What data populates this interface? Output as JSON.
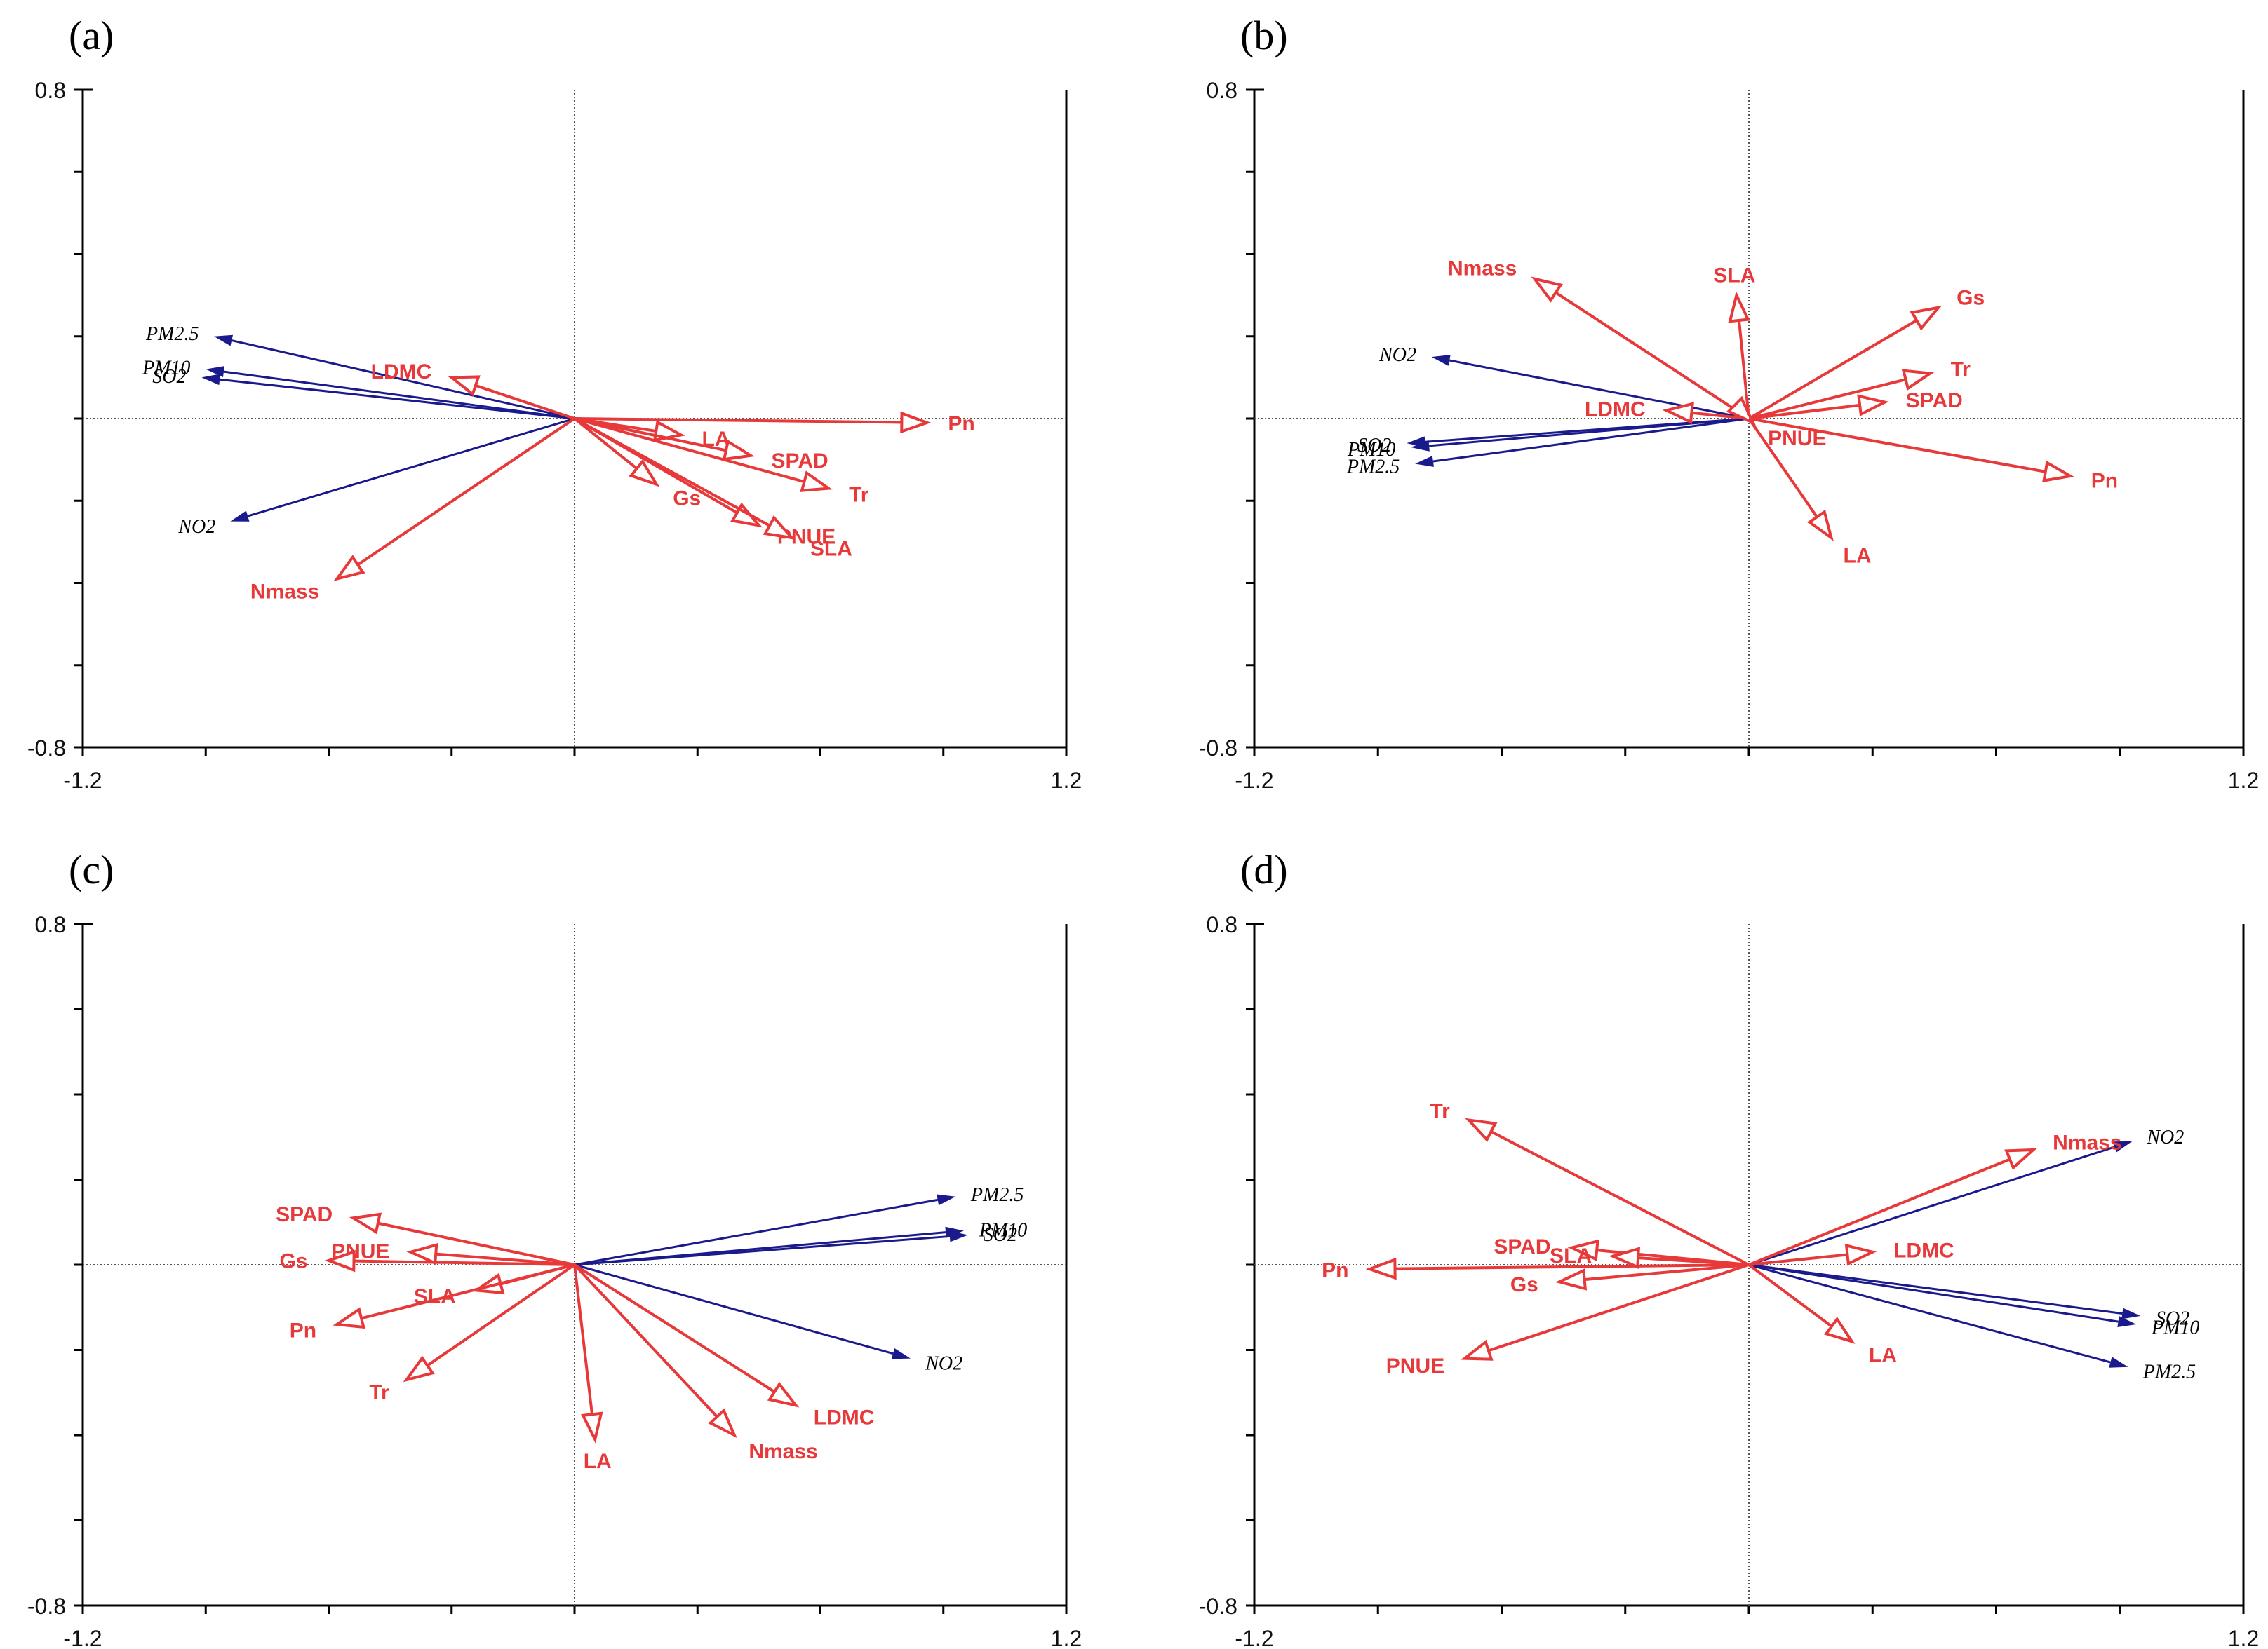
{
  "figure": {
    "panel_labels": [
      "(a)",
      "(b)",
      "(c)",
      "(d)"
    ]
  },
  "colors": {
    "trait_arrow": "#e8393a",
    "env_arrow": "#1a1a8c",
    "axis": "#000000",
    "crosshair": "#555555"
  },
  "chart_data": [
    {
      "type": "biplot",
      "panel": "(a)",
      "xlim": [
        -1.2,
        1.2
      ],
      "ylim": [
        -0.8,
        0.8
      ],
      "x_tick_labels": [
        "-1.2",
        "1.2"
      ],
      "y_tick_labels": [
        "0.8",
        "-0.8"
      ],
      "environmental_vectors": [
        {
          "name": "PM2.5",
          "x": -0.88,
          "y": 0.2
        },
        {
          "name": "PM10",
          "x": -0.9,
          "y": 0.12
        },
        {
          "name": "SO2",
          "x": -0.91,
          "y": 0.1
        },
        {
          "name": "NO2",
          "x": -0.84,
          "y": -0.25
        }
      ],
      "trait_vectors": [
        {
          "name": "LDMC",
          "x": -0.3,
          "y": 0.1
        },
        {
          "name": "Nmass",
          "x": -0.58,
          "y": -0.39
        },
        {
          "name": "Pn",
          "x": 0.86,
          "y": -0.01
        },
        {
          "name": "LA",
          "x": 0.26,
          "y": -0.04
        },
        {
          "name": "SPAD",
          "x": 0.43,
          "y": -0.09
        },
        {
          "name": "Tr",
          "x": 0.62,
          "y": -0.17
        },
        {
          "name": "Gs",
          "x": 0.2,
          "y": -0.16
        },
        {
          "name": "PNUE",
          "x": 0.45,
          "y": -0.26
        },
        {
          "name": "SLA",
          "x": 0.53,
          "y": -0.29
        }
      ]
    },
    {
      "type": "biplot",
      "panel": "(b)",
      "xlim": [
        -1.2,
        1.2
      ],
      "ylim": [
        -0.8,
        0.8
      ],
      "x_tick_labels": [
        "-1.2",
        "1.2"
      ],
      "y_tick_labels": [
        "0.8",
        "-0.8"
      ],
      "environmental_vectors": [
        {
          "name": "NO2",
          "x": -0.77,
          "y": 0.15
        },
        {
          "name": "SO2",
          "x": -0.83,
          "y": -0.06
        },
        {
          "name": "PM10",
          "x": -0.82,
          "y": -0.07
        },
        {
          "name": "PM2.5",
          "x": -0.81,
          "y": -0.11
        }
      ],
      "trait_vectors": [
        {
          "name": "Nmass",
          "x": -0.52,
          "y": 0.34
        },
        {
          "name": "SLA",
          "x": -0.03,
          "y": 0.3
        },
        {
          "name": "Gs",
          "x": 0.46,
          "y": 0.27
        },
        {
          "name": "Tr",
          "x": 0.44,
          "y": 0.11
        },
        {
          "name": "SPAD",
          "x": 0.33,
          "y": 0.04
        },
        {
          "name": "LDMC",
          "x": -0.2,
          "y": 0.02
        },
        {
          "name": "PNUE",
          "x": 0.01,
          "y": -0.01
        },
        {
          "name": "Pn",
          "x": 0.78,
          "y": -0.14
        },
        {
          "name": "LA",
          "x": 0.2,
          "y": -0.29
        }
      ]
    },
    {
      "type": "biplot",
      "panel": "(c)",
      "xlim": [
        -1.2,
        1.2
      ],
      "ylim": [
        -0.8,
        0.8
      ],
      "x_tick_labels": [
        "-1.2",
        "1.2"
      ],
      "y_tick_labels": [
        "0.8",
        "-0.8"
      ],
      "environmental_vectors": [
        {
          "name": "PM2.5",
          "x": 0.93,
          "y": 0.16
        },
        {
          "name": "PM10",
          "x": 0.95,
          "y": 0.08
        },
        {
          "name": "SO2",
          "x": 0.96,
          "y": 0.07
        },
        {
          "name": "NO2",
          "x": 0.82,
          "y": -0.22
        }
      ],
      "trait_vectors": [
        {
          "name": "SPAD",
          "x": -0.54,
          "y": 0.11
        },
        {
          "name": "PNUE",
          "x": -0.4,
          "y": 0.03
        },
        {
          "name": "Gs",
          "x": -0.6,
          "y": 0.01
        },
        {
          "name": "SLA",
          "x": -0.24,
          "y": -0.06
        },
        {
          "name": "Pn",
          "x": -0.58,
          "y": -0.14
        },
        {
          "name": "Tr",
          "x": -0.41,
          "y": -0.27
        },
        {
          "name": "LA",
          "x": 0.05,
          "y": -0.41
        },
        {
          "name": "Nmass",
          "x": 0.39,
          "y": -0.4
        },
        {
          "name": "LDMC",
          "x": 0.54,
          "y": -0.33
        }
      ]
    },
    {
      "type": "biplot",
      "panel": "(d)",
      "xlim": [
        -1.2,
        1.2
      ],
      "ylim": [
        -0.8,
        0.8
      ],
      "x_tick_labels": [
        "-1.2",
        "1.2"
      ],
      "y_tick_labels": [
        "0.8",
        "-0.8"
      ],
      "environmental_vectors": [
        {
          "name": "NO2",
          "x": 0.93,
          "y": 0.29
        },
        {
          "name": "SO2",
          "x": 0.95,
          "y": -0.12
        },
        {
          "name": "PM10",
          "x": 0.94,
          "y": -0.14
        },
        {
          "name": "PM2.5",
          "x": 0.92,
          "y": -0.24
        }
      ],
      "trait_vectors": [
        {
          "name": "Tr",
          "x": -0.68,
          "y": 0.34
        },
        {
          "name": "Nmass",
          "x": 0.69,
          "y": 0.27
        },
        {
          "name": "SPAD",
          "x": -0.43,
          "y": 0.04
        },
        {
          "name": "SLA",
          "x": -0.33,
          "y": 0.02
        },
        {
          "name": "LDMC",
          "x": 0.3,
          "y": 0.03
        },
        {
          "name": "Pn",
          "x": -0.92,
          "y": -0.01
        },
        {
          "name": "Gs",
          "x": -0.46,
          "y": -0.04
        },
        {
          "name": "PNUE",
          "x": -0.69,
          "y": -0.22
        },
        {
          "name": "LA",
          "x": 0.25,
          "y": -0.18
        }
      ]
    }
  ]
}
